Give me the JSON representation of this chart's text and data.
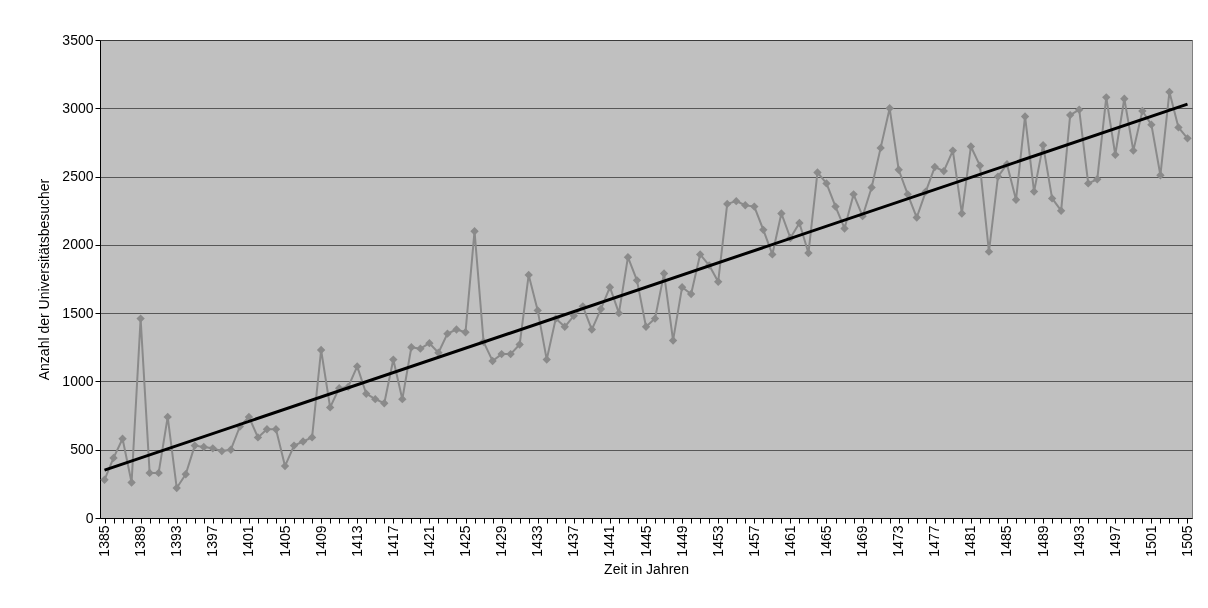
{
  "chart_data": {
    "type": "line",
    "xlabel": "Zeit in Jahren",
    "ylabel": "Anzahl der Universitätsbesucher",
    "x": [
      1385,
      1386,
      1387,
      1388,
      1389,
      1390,
      1391,
      1392,
      1393,
      1394,
      1395,
      1396,
      1397,
      1398,
      1399,
      1400,
      1401,
      1402,
      1403,
      1404,
      1405,
      1406,
      1407,
      1408,
      1409,
      1410,
      1411,
      1412,
      1413,
      1414,
      1415,
      1416,
      1417,
      1418,
      1419,
      1420,
      1421,
      1422,
      1423,
      1424,
      1425,
      1426,
      1427,
      1428,
      1429,
      1430,
      1431,
      1432,
      1433,
      1434,
      1435,
      1436,
      1437,
      1438,
      1439,
      1440,
      1441,
      1442,
      1443,
      1444,
      1445,
      1446,
      1447,
      1448,
      1449,
      1450,
      1451,
      1452,
      1453,
      1454,
      1455,
      1456,
      1457,
      1458,
      1459,
      1460,
      1461,
      1462,
      1463,
      1464,
      1465,
      1466,
      1467,
      1468,
      1469,
      1470,
      1471,
      1472,
      1473,
      1474,
      1475,
      1476,
      1477,
      1478,
      1479,
      1480,
      1481,
      1482,
      1483,
      1484,
      1485,
      1486,
      1487,
      1488,
      1489,
      1490,
      1491,
      1492,
      1493,
      1494,
      1495,
      1496,
      1497,
      1498,
      1499,
      1500,
      1501,
      1502,
      1503,
      1504,
      1505
    ],
    "series": [
      {
        "color": "#8a8a8a",
        "marker": "diamond",
        "values": [
          280,
          440,
          580,
          260,
          1460,
          330,
          330,
          740,
          220,
          320,
          530,
          520,
          510,
          490,
          500,
          670,
          740,
          590,
          650,
          650,
          380,
          530,
          560,
          590,
          1230,
          810,
          950,
          960,
          1110,
          910,
          870,
          840,
          1160,
          870,
          1250,
          1240,
          1280,
          1210,
          1350,
          1380,
          1360,
          2100,
          1290,
          1150,
          1200,
          1200,
          1270,
          1780,
          1520,
          1160,
          1460,
          1400,
          1480,
          1550,
          1380,
          1530,
          1690,
          1500,
          1910,
          1740,
          1400,
          1460,
          1790,
          1300,
          1690,
          1640,
          1930,
          1850,
          1730,
          2300,
          2320,
          2290,
          2280,
          2110,
          1930,
          2230,
          2050,
          2160,
          1940,
          2530,
          2450,
          2280,
          2120,
          2370,
          2210,
          2420,
          2710,
          3000,
          2550,
          2370,
          2200,
          2390,
          2570,
          2540,
          2690,
          2230,
          2720,
          2580,
          1950,
          2500,
          2590,
          2330,
          2940,
          2390,
          2730,
          2340,
          2250,
          2950,
          2990,
          2450,
          2480,
          3080,
          2660,
          3070,
          2690,
          2980,
          2880,
          2510,
          3120,
          2860,
          2780
        ]
      },
      {
        "type": "line",
        "color": "#000000",
        "marker": "none",
        "x": [
          1385,
          1505
        ],
        "values": [
          350,
          3030
        ]
      }
    ],
    "xlim": [
      1384.5,
      1505.5
    ],
    "xticks": [
      1385,
      {
        "value": 1386,
        "label": null
      },
      {
        "value": 1387,
        "label": null
      },
      {
        "value": 1388,
        "label": null
      },
      1389,
      {
        "value": 1390,
        "label": null
      },
      {
        "value": 1391,
        "label": null
      },
      {
        "value": 1392,
        "label": null
      },
      1393,
      {
        "value": 1394,
        "label": null
      },
      {
        "value": 1395,
        "label": null
      },
      {
        "value": 1396,
        "label": null
      },
      1397,
      {
        "value": 1398,
        "label": null
      },
      {
        "value": 1399,
        "label": null
      },
      {
        "value": 1400,
        "label": null
      },
      1401,
      {
        "value": 1402,
        "label": null
      },
      {
        "value": 1403,
        "label": null
      },
      {
        "value": 1404,
        "label": null
      },
      1405,
      {
        "value": 1406,
        "label": null
      },
      {
        "value": 1407,
        "label": null
      },
      {
        "value": 1408,
        "label": null
      },
      1409,
      {
        "value": 1410,
        "label": null
      },
      {
        "value": 1411,
        "label": null
      },
      {
        "value": 1412,
        "label": null
      },
      1413,
      {
        "value": 1414,
        "label": null
      },
      {
        "value": 1415,
        "label": null
      },
      {
        "value": 1416,
        "label": null
      },
      1417,
      {
        "value": 1418,
        "label": null
      },
      {
        "value": 1419,
        "label": null
      },
      {
        "value": 1420,
        "label": null
      },
      1421,
      {
        "value": 1422,
        "label": null
      },
      {
        "value": 1423,
        "label": null
      },
      {
        "value": 1424,
        "label": null
      },
      1425,
      {
        "value": 1426,
        "label": null
      },
      {
        "value": 1427,
        "label": null
      },
      {
        "value": 1428,
        "label": null
      },
      1429,
      {
        "value": 1430,
        "label": null
      },
      {
        "value": 1431,
        "label": null
      },
      {
        "value": 1432,
        "label": null
      },
      1433,
      {
        "value": 1434,
        "label": null
      },
      {
        "value": 1435,
        "label": null
      },
      {
        "value": 1436,
        "label": null
      },
      1437,
      {
        "value": 1438,
        "label": null
      },
      {
        "value": 1439,
        "label": null
      },
      {
        "value": 1440,
        "label": null
      },
      1441,
      {
        "value": 1442,
        "label": null
      },
      {
        "value": 1443,
        "label": null
      },
      {
        "value": 1444,
        "label": null
      },
      1445,
      {
        "value": 1446,
        "label": null
      },
      {
        "value": 1447,
        "label": null
      },
      {
        "value": 1448,
        "label": null
      },
      1449,
      {
        "value": 1450,
        "label": null
      },
      {
        "value": 1451,
        "label": null
      },
      {
        "value": 1452,
        "label": null
      },
      1453,
      {
        "value": 1454,
        "label": null
      },
      {
        "value": 1455,
        "label": null
      },
      {
        "value": 1456,
        "label": null
      },
      1457,
      {
        "value": 1458,
        "label": null
      },
      {
        "value": 1459,
        "label": null
      },
      {
        "value": 1460,
        "label": null
      },
      1461,
      {
        "value": 1462,
        "label": null
      },
      {
        "value": 1463,
        "label": null
      },
      {
        "value": 1464,
        "label": null
      },
      1465,
      {
        "value": 1466,
        "label": null
      },
      {
        "value": 1467,
        "label": null
      },
      {
        "value": 1468,
        "label": null
      },
      1469,
      {
        "value": 1470,
        "label": null
      },
      {
        "value": 1471,
        "label": null
      },
      {
        "value": 1472,
        "label": null
      },
      1473,
      {
        "value": 1474,
        "label": null
      },
      {
        "value": 1475,
        "label": null
      },
      {
        "value": 1476,
        "label": null
      },
      1477,
      {
        "value": 1478,
        "label": null
      },
      {
        "value": 1479,
        "label": null
      },
      {
        "value": 1480,
        "label": null
      },
      1481,
      {
        "value": 1482,
        "label": null
      },
      {
        "value": 1483,
        "label": null
      },
      {
        "value": 1484,
        "label": null
      },
      1485,
      {
        "value": 1486,
        "label": null
      },
      {
        "value": 1487,
        "label": null
      },
      {
        "value": 1488,
        "label": null
      },
      1489,
      {
        "value": 1490,
        "label": null
      },
      {
        "value": 1491,
        "label": null
      },
      {
        "value": 1492,
        "label": null
      },
      1493,
      {
        "value": 1494,
        "label": null
      },
      {
        "value": 1495,
        "label": null
      },
      {
        "value": 1496,
        "label": null
      },
      1497,
      {
        "value": 1498,
        "label": null
      },
      {
        "value": 1499,
        "label": null
      },
      {
        "value": 1500,
        "label": null
      },
      1501,
      {
        "value": 1502,
        "label": null
      },
      {
        "value": 1503,
        "label": null
      },
      {
        "value": 1504,
        "label": null
      },
      1505
    ],
    "ylim": [
      0,
      3500
    ],
    "yticks": [
      0,
      500,
      1000,
      1500,
      2000,
      2500,
      3000,
      3500
    ],
    "grid": "y"
  }
}
